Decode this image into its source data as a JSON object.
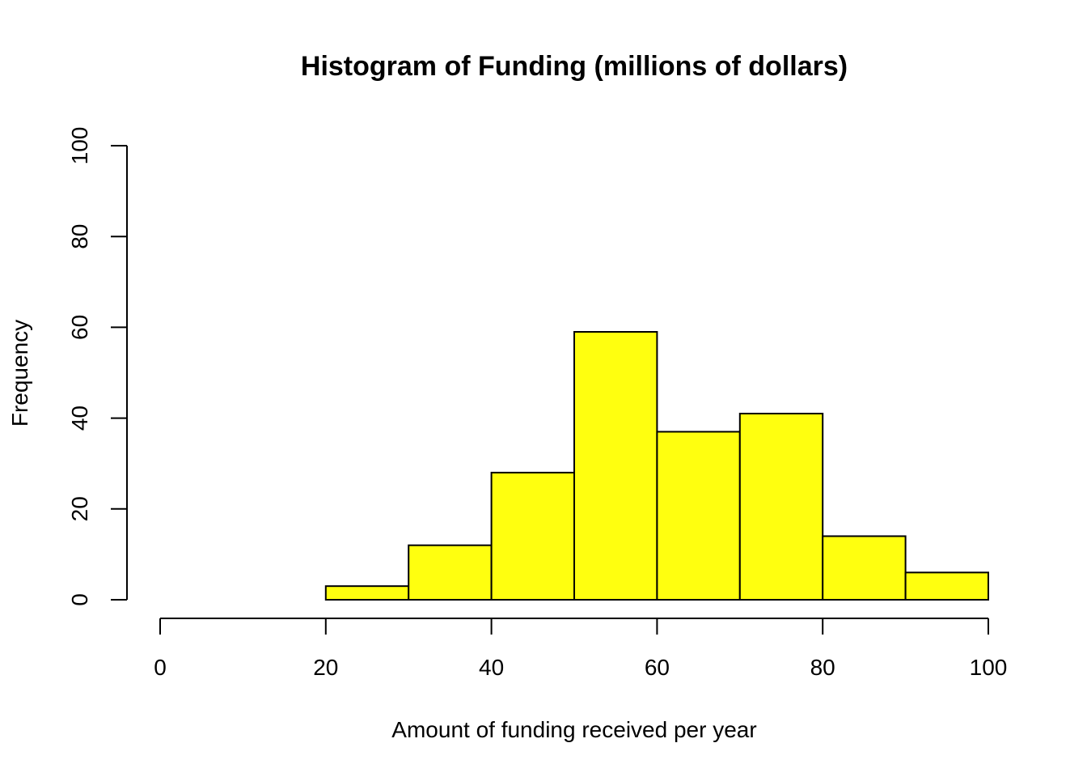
{
  "chart_data": {
    "type": "bar",
    "title": "Histogram of Funding (millions of dollars)",
    "xlabel": "Amount of funding received per year",
    "ylabel": "Frequency",
    "bins": [
      {
        "from": 20,
        "to": 30,
        "count": 3
      },
      {
        "from": 30,
        "to": 40,
        "count": 12
      },
      {
        "from": 40,
        "to": 50,
        "count": 28
      },
      {
        "from": 50,
        "to": 60,
        "count": 59
      },
      {
        "from": 60,
        "to": 70,
        "count": 37
      },
      {
        "from": 70,
        "to": 80,
        "count": 41
      },
      {
        "from": 80,
        "to": 90,
        "count": 14
      },
      {
        "from": 90,
        "to": 100,
        "count": 6
      }
    ],
    "xlim": [
      0,
      100
    ],
    "ylim": [
      0,
      100
    ],
    "x_ticks": [
      0,
      20,
      40,
      60,
      80,
      100
    ],
    "y_ticks": [
      0,
      20,
      40,
      60,
      80,
      100
    ],
    "bar_color": "#ffff0f",
    "grid": false,
    "legend": "none"
  }
}
